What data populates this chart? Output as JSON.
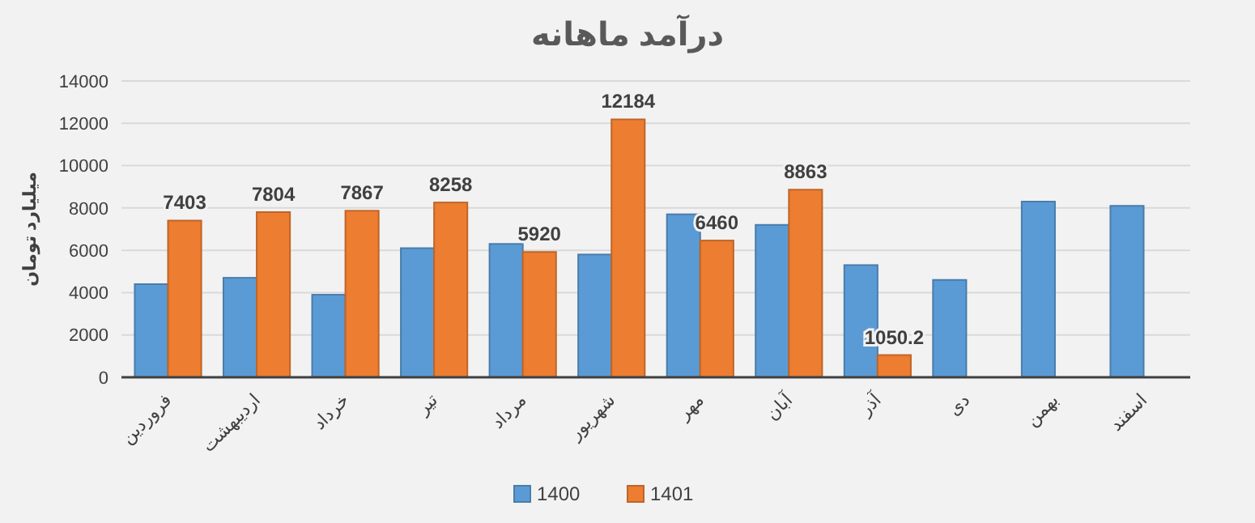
{
  "chart_data": {
    "type": "bar",
    "title": "درآمد ماهانه",
    "ylabel": "میلیارد تومان",
    "categories": [
      "فروردین",
      "اردیبهشت",
      "خرداد",
      "تیر",
      "مرداد",
      "شهریور",
      "مهر",
      "آبان",
      "آذر",
      "دی",
      "بهمن",
      "اسفند"
    ],
    "series": [
      {
        "name": "1400",
        "color": "#5b9bd5",
        "values": [
          4400,
          4700,
          3900,
          6100,
          6300,
          5800,
          7700,
          7200,
          5300,
          4600,
          8300,
          8100
        ]
      },
      {
        "name": "1401",
        "color": "#ed7d31",
        "values": [
          7403,
          7804,
          7867,
          8258,
          5920,
          12184,
          6460,
          8863,
          1050.2,
          null,
          null,
          null
        ],
        "value_labels": [
          "7403",
          "7804",
          "7867",
          "8258",
          "5920",
          "12184",
          "6460",
          "8863",
          "1050.2",
          null,
          null,
          null
        ]
      }
    ],
    "ylim": [
      0,
      14000
    ],
    "yticks": [
      0,
      2000,
      4000,
      6000,
      8000,
      10000,
      12000,
      14000
    ],
    "grid": "y",
    "legend": "bottom"
  }
}
